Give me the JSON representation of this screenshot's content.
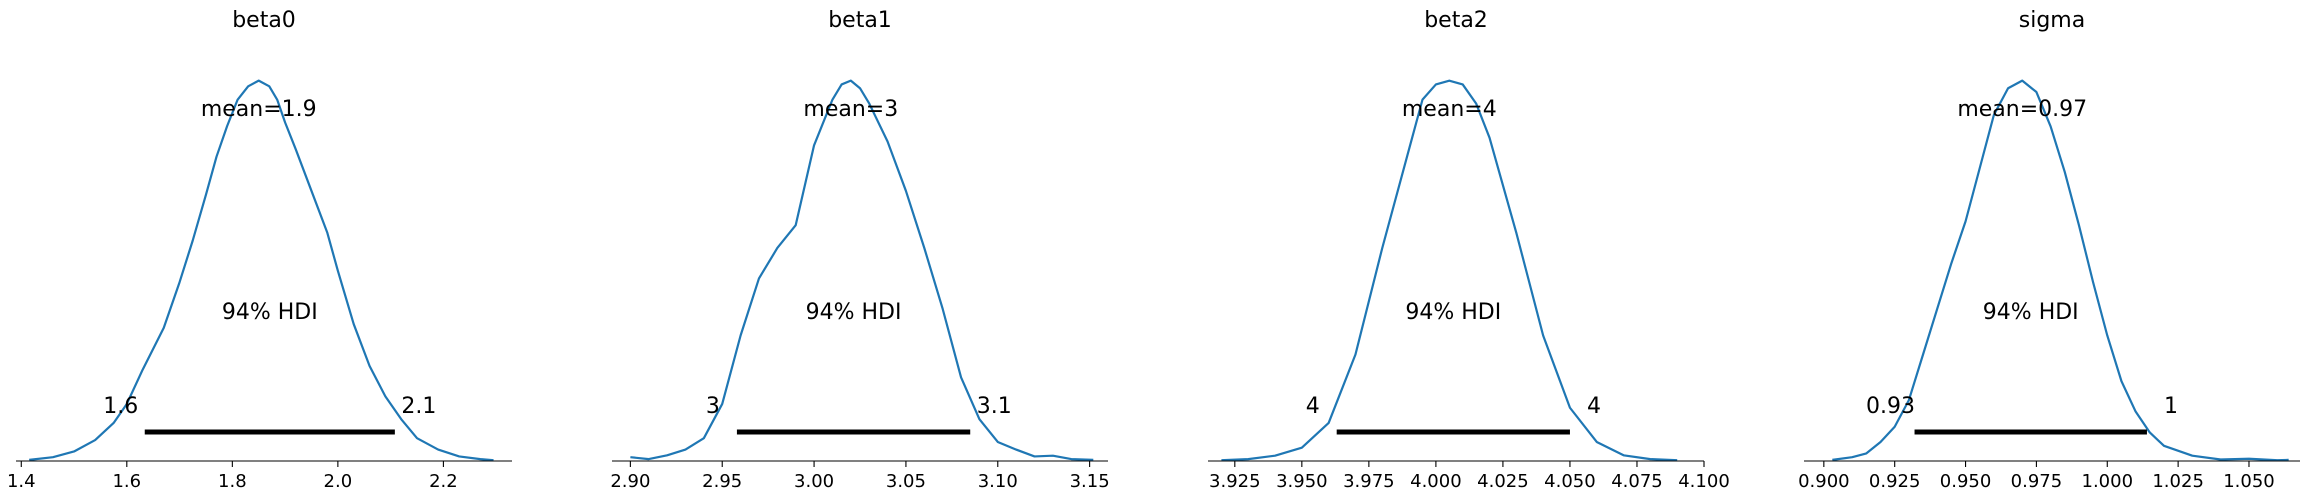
{
  "chart_data": [
    {
      "type": "area",
      "title": "beta0",
      "mean_label": "mean=1.9",
      "hdi_label": "94% HDI",
      "hdi_low_label": "1.6",
      "hdi_high_label": "2.1",
      "hdi": [
        1.634,
        2.108
      ],
      "xlim": [
        1.39,
        2.33
      ],
      "ylim": [
        0,
        1.07
      ],
      "xticks": [
        1.4,
        1.6,
        1.8,
        2.0,
        2.2
      ],
      "xtick_labels": [
        "1.4",
        "1.6",
        "1.8",
        "2.0",
        "2.2"
      ],
      "density": {
        "x": [
          1.415,
          1.46,
          1.5,
          1.54,
          1.575,
          1.6,
          1.63,
          1.67,
          1.7,
          1.725,
          1.75,
          1.77,
          1.79,
          1.81,
          1.83,
          1.85,
          1.87,
          1.885,
          1.9,
          1.92,
          1.95,
          1.98,
          2.0,
          2.03,
          2.06,
          2.09,
          2.12,
          2.15,
          2.19,
          2.23,
          2.27,
          2.295
        ],
        "y": [
          0.003,
          0.01,
          0.025,
          0.055,
          0.1,
          0.15,
          0.24,
          0.35,
          0.47,
          0.58,
          0.7,
          0.8,
          0.88,
          0.95,
          0.985,
          1.0,
          0.985,
          0.95,
          0.89,
          0.82,
          0.71,
          0.6,
          0.5,
          0.36,
          0.25,
          0.17,
          0.11,
          0.06,
          0.03,
          0.012,
          0.005,
          0.002
        ]
      }
    },
    {
      "type": "area",
      "title": "beta1",
      "mean_label": "mean=3",
      "hdi_label": "94% HDI",
      "hdi_low_label": "3",
      "hdi_high_label": "3.1",
      "hdi": [
        2.958,
        3.085
      ],
      "xlim": [
        2.89,
        3.16
      ],
      "ylim": [
        0,
        1.07
      ],
      "xticks": [
        2.9,
        2.95,
        3.0,
        3.05,
        3.1,
        3.15
      ],
      "xtick_labels": [
        "2.90",
        "2.95",
        "3.00",
        "3.05",
        "3.10",
        "3.15"
      ],
      "density": {
        "x": [
          2.9,
          2.91,
          2.92,
          2.93,
          2.94,
          2.95,
          2.96,
          2.97,
          2.98,
          2.99,
          3.0,
          3.01,
          3.015,
          3.02,
          3.025,
          3.03,
          3.04,
          3.05,
          3.06,
          3.07,
          3.08,
          3.09,
          3.1,
          3.11,
          3.12,
          3.13,
          3.14,
          3.152
        ],
        "y": [
          0.01,
          0.005,
          0.015,
          0.03,
          0.06,
          0.15,
          0.33,
          0.48,
          0.56,
          0.62,
          0.83,
          0.95,
          0.99,
          1.0,
          0.98,
          0.94,
          0.84,
          0.71,
          0.56,
          0.4,
          0.22,
          0.11,
          0.05,
          0.03,
          0.012,
          0.014,
          0.005,
          0.003
        ]
      }
    },
    {
      "type": "area",
      "title": "beta2",
      "mean_label": "mean=4",
      "hdi_label": "94% HDI",
      "hdi_low_label": "4",
      "hdi_high_label": "4",
      "hdi": [
        3.963,
        4.05
      ],
      "xlim": [
        3.915,
        4.1
      ],
      "ylim": [
        0,
        1.07
      ],
      "xticks": [
        3.925,
        3.95,
        3.975,
        4.0,
        4.025,
        4.05,
        4.075,
        4.1
      ],
      "xtick_labels": [
        "3.925",
        "3.950",
        "3.975",
        "4.000",
        "4.025",
        "4.050",
        "4.075",
        "4.100"
      ],
      "density": {
        "x": [
          3.92,
          3.93,
          3.94,
          3.95,
          3.96,
          3.97,
          3.98,
          3.99,
          3.995,
          4.0,
          4.005,
          4.01,
          4.015,
          4.02,
          4.03,
          4.04,
          4.05,
          4.06,
          4.07,
          4.08,
          4.09
        ],
        "y": [
          0.002,
          0.005,
          0.014,
          0.035,
          0.1,
          0.28,
          0.56,
          0.82,
          0.95,
          0.99,
          1.0,
          0.99,
          0.94,
          0.85,
          0.6,
          0.33,
          0.14,
          0.05,
          0.015,
          0.005,
          0.002
        ]
      }
    },
    {
      "type": "area",
      "title": "sigma",
      "mean_label": "mean=0.97",
      "hdi_label": "94% HDI",
      "hdi_low_label": "0.93",
      "hdi_high_label": "1",
      "hdi": [
        0.932,
        1.014
      ],
      "xlim": [
        0.893,
        1.068
      ],
      "ylim": [
        0,
        1.07
      ],
      "xticks": [
        0.9,
        0.925,
        0.95,
        0.975,
        1.0,
        1.025,
        1.05
      ],
      "xtick_labels": [
        "0.900",
        "0.925",
        "0.950",
        "0.975",
        "1.000",
        "1.025",
        "1.050"
      ],
      "density": {
        "x": [
          0.903,
          0.91,
          0.915,
          0.92,
          0.925,
          0.93,
          0.935,
          0.94,
          0.945,
          0.95,
          0.955,
          0.96,
          0.965,
          0.97,
          0.975,
          0.98,
          0.985,
          0.99,
          0.995,
          1.0,
          1.005,
          1.01,
          1.015,
          1.02,
          1.03,
          1.04,
          1.05,
          1.06,
          1.064
        ],
        "y": [
          0.003,
          0.01,
          0.02,
          0.05,
          0.09,
          0.16,
          0.28,
          0.4,
          0.52,
          0.63,
          0.77,
          0.91,
          0.98,
          1.0,
          0.97,
          0.88,
          0.76,
          0.62,
          0.47,
          0.33,
          0.21,
          0.13,
          0.075,
          0.04,
          0.014,
          0.004,
          0.006,
          0.002,
          0.003
        ]
      }
    }
  ]
}
